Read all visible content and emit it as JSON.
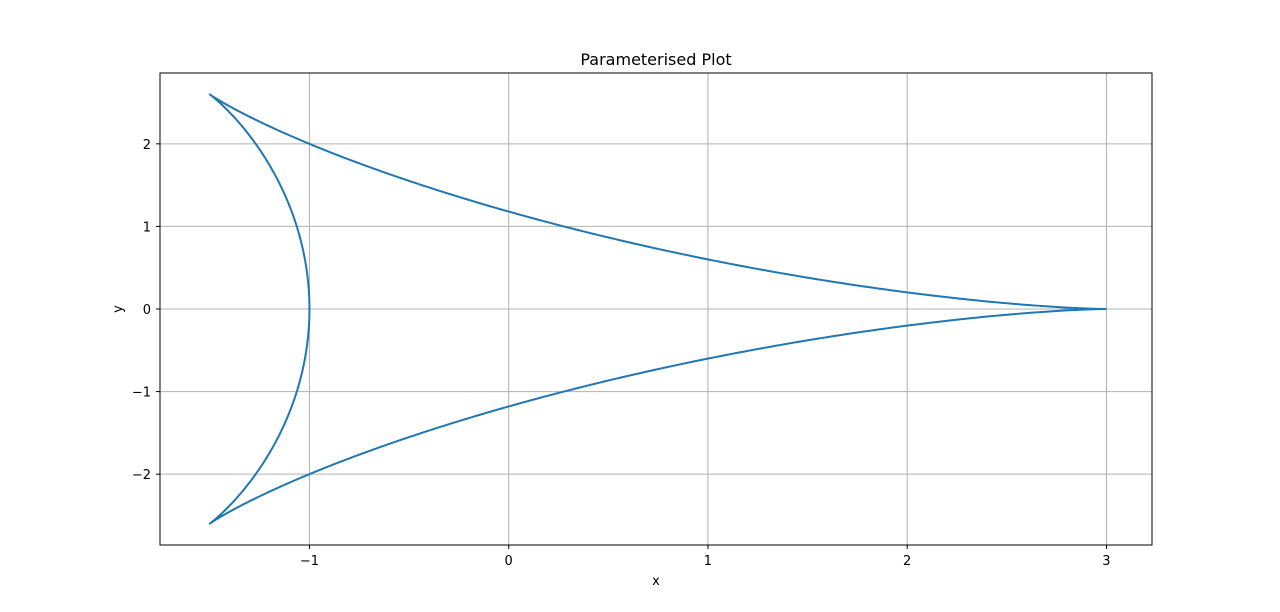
{
  "chart_data": {
    "type": "line",
    "title": "Parameterised Plot",
    "xlabel": "x",
    "ylabel": "y",
    "xlim": [
      -1.75,
      3.2286
    ],
    "ylim": [
      -2.8578,
      2.8578
    ],
    "grid": true,
    "x_ticks": [
      -1,
      0,
      1,
      2,
      3
    ],
    "y_ticks": [
      -2,
      -1,
      0,
      1,
      2
    ],
    "x_tick_labels": [
      "−1",
      "0",
      "1",
      "2",
      "3"
    ],
    "y_tick_labels": [
      "−2",
      "−1",
      "0",
      "1",
      "2"
    ],
    "series": [
      {
        "curve": "deltoid",
        "parametric": true,
        "x_equation": "2cos(t) + cos(2t)",
        "y_equation": "2sin(t) - sin(2t)",
        "t_range": [
          0,
          6.2832
        ],
        "color": "#1f77b4",
        "samples": [
          {
            "x": 3.0,
            "y": 0.0
          },
          {
            "x": 2.0,
            "y": 0.2
          },
          {
            "x": 1.0,
            "y": 0.6
          },
          {
            "x": 0.0,
            "y": 1.18
          },
          {
            "x": -1.0,
            "y": 2.0
          },
          {
            "x": -1.5,
            "y": 2.598
          },
          {
            "x": -1.0,
            "y": 0.0
          },
          {
            "x": -1.5,
            "y": -2.598
          },
          {
            "x": -1.0,
            "y": -2.0
          },
          {
            "x": 0.0,
            "y": -1.18
          },
          {
            "x": 1.0,
            "y": -0.6
          },
          {
            "x": 2.0,
            "y": -0.2
          },
          {
            "x": 3.0,
            "y": 0.0
          }
        ]
      }
    ]
  }
}
